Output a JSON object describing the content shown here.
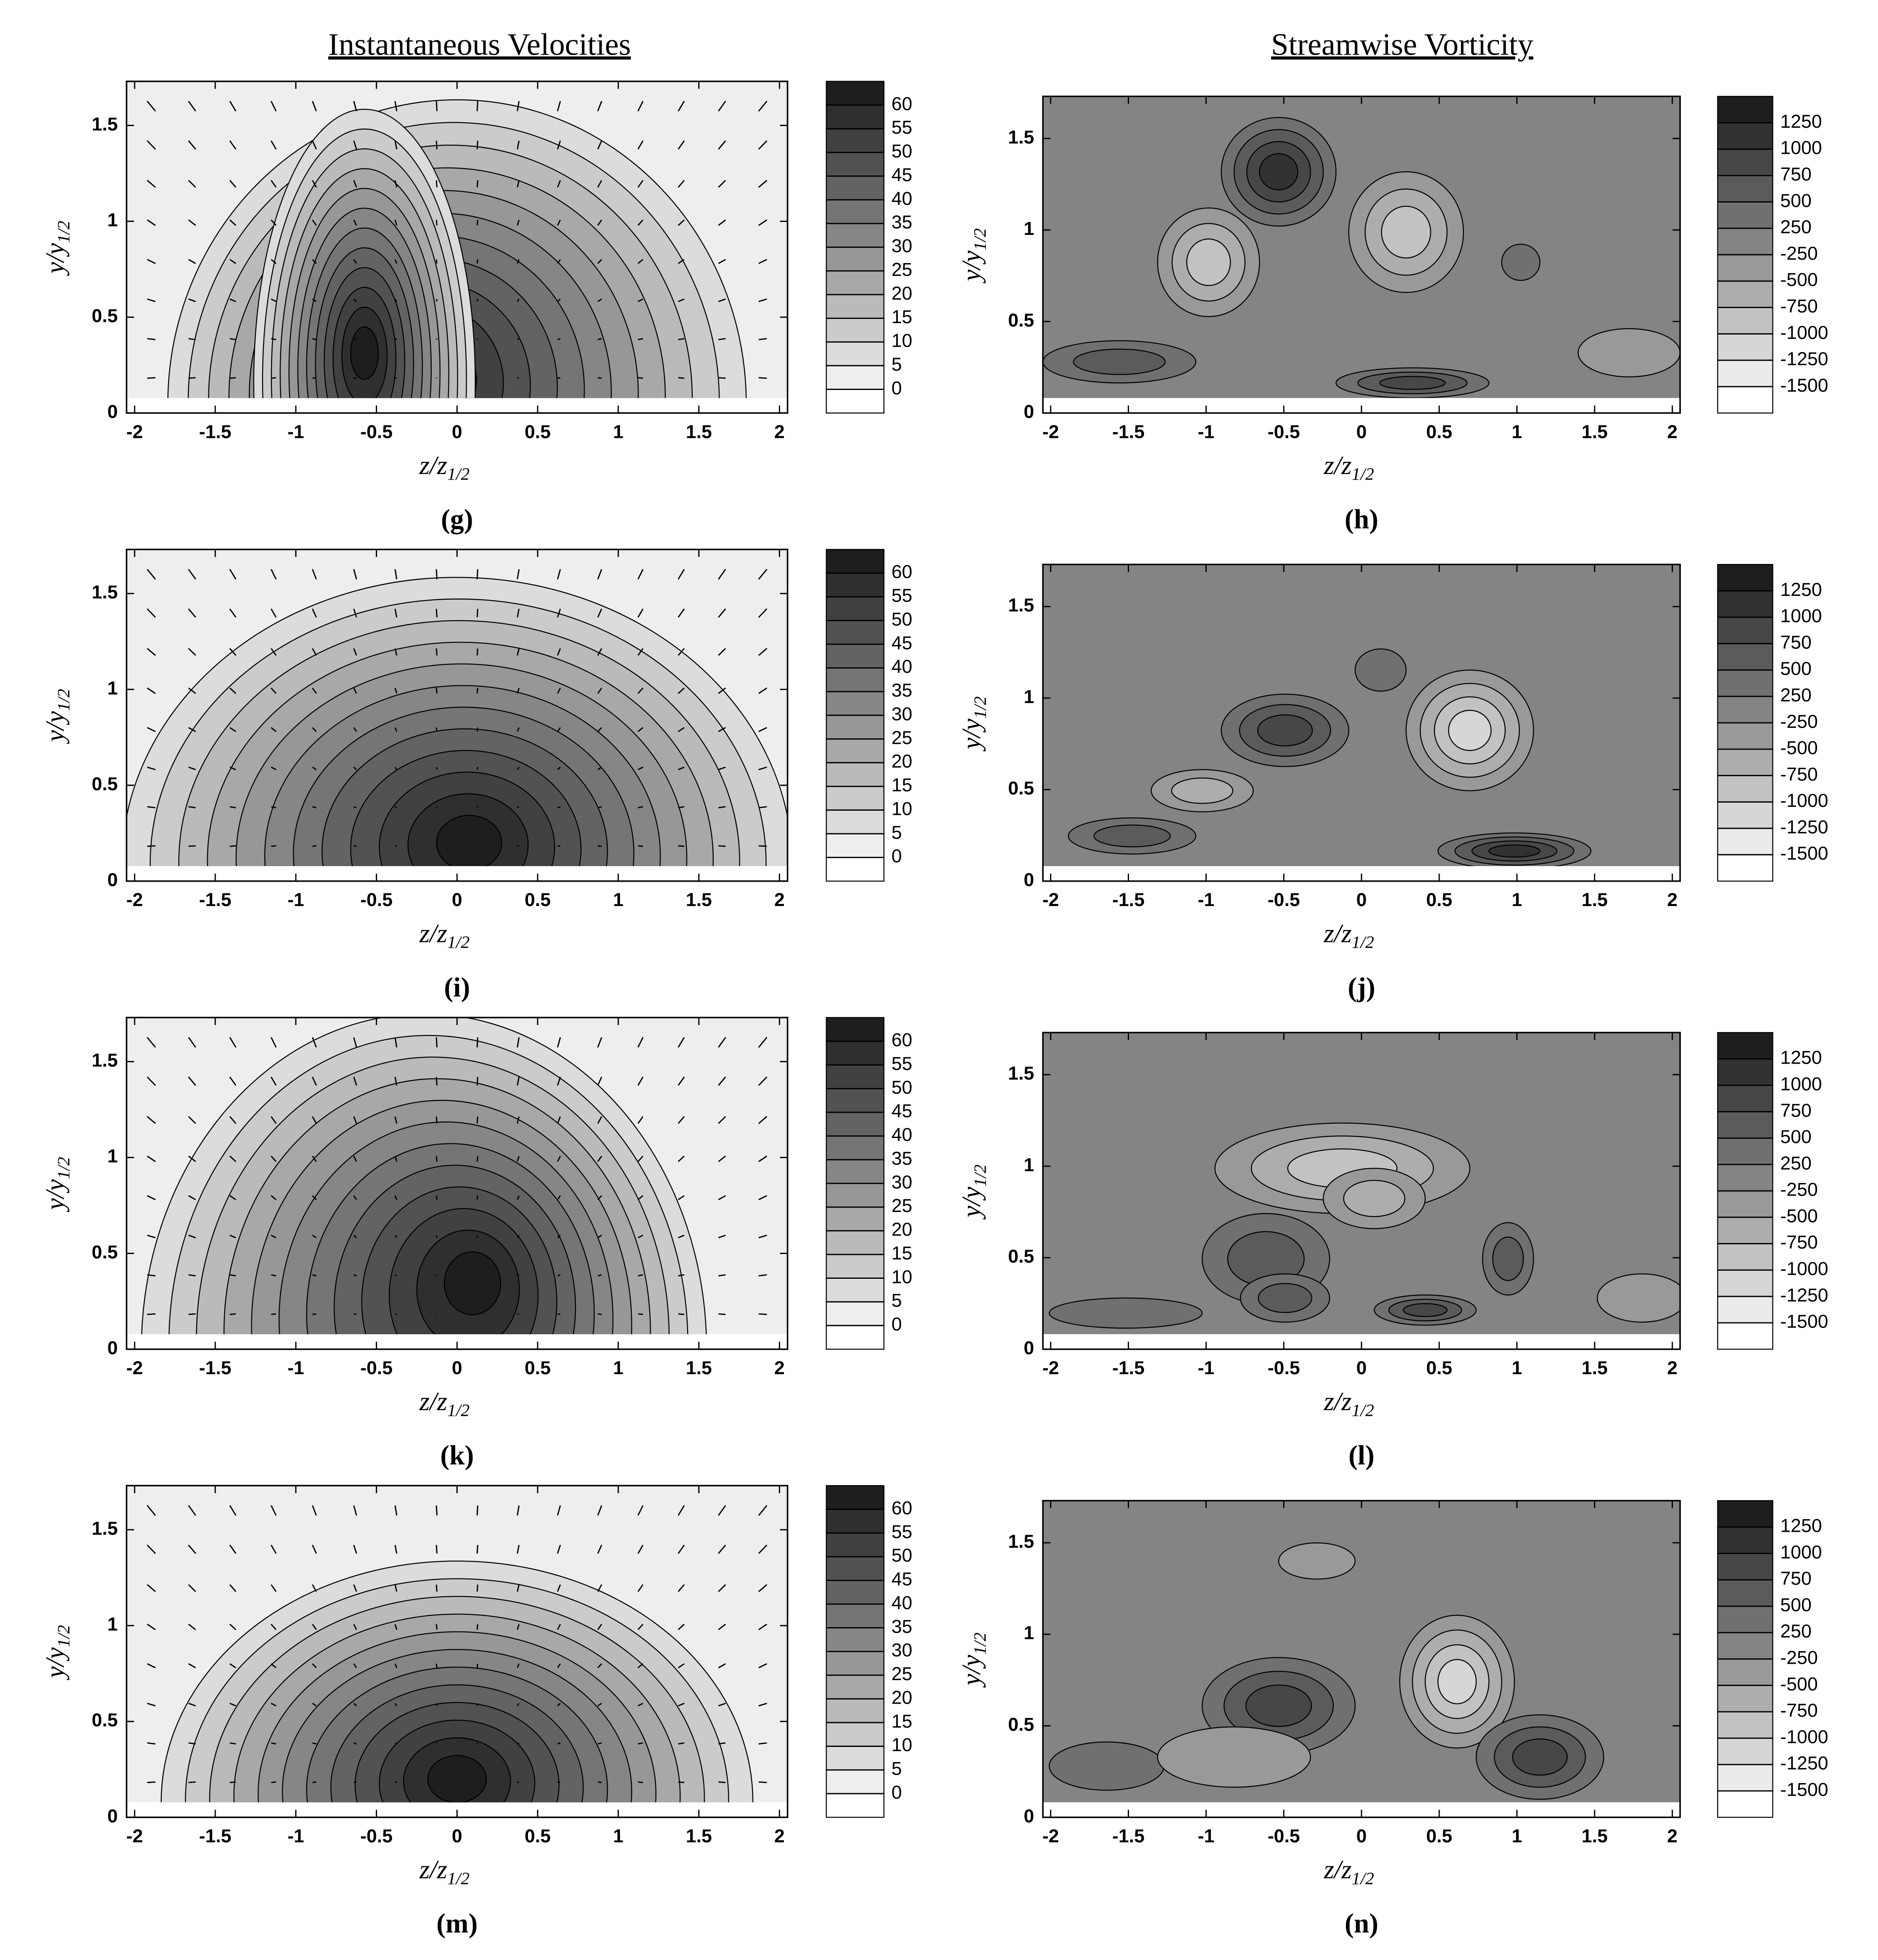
{
  "headers": [
    "Instantaneous Velocities",
    "Streamwise Vorticity"
  ],
  "chart_data": [
    {
      "type": "contour",
      "label": "(g)",
      "xlabel": "z/z",
      "xlabel_sub": "1/2",
      "ylabel": "y/y",
      "ylabel_sub": "1/2",
      "xlim": [
        -2.05,
        2.05
      ],
      "ylim": [
        0,
        1.73
      ],
      "xticks": [
        -2,
        -1.5,
        -1,
        -0.5,
        0,
        0.5,
        1,
        1.5,
        2
      ],
      "yticks": [
        0,
        0.5,
        1,
        1.5
      ],
      "colorbar_levels": [
        0,
        5,
        10,
        15,
        20,
        25,
        30,
        35,
        40,
        45,
        50,
        55,
        60
      ]
    },
    {
      "type": "contour",
      "label": "(h)",
      "xlabel": "z/z",
      "xlabel_sub": "1/2",
      "ylabel": "y/y",
      "ylabel_sub": "1/2",
      "xlim": [
        -2.05,
        2.05
      ],
      "ylim": [
        0,
        1.73
      ],
      "xticks": [
        -2,
        -1.5,
        -1,
        -0.5,
        0,
        0.5,
        1,
        1.5,
        2
      ],
      "yticks": [
        0,
        0.5,
        1,
        1.5
      ],
      "colorbar_levels": [
        -1500,
        -1250,
        -1000,
        -750,
        -500,
        -250,
        250,
        500,
        750,
        1000,
        1250
      ]
    },
    {
      "type": "contour",
      "label": "(i)",
      "xlabel": "z/z",
      "xlabel_sub": "1/2",
      "ylabel": "y/y",
      "ylabel_sub": "1/2",
      "xlim": [
        -2.05,
        2.05
      ],
      "ylim": [
        0,
        1.73
      ],
      "xticks": [
        -2,
        -1.5,
        -1,
        -0.5,
        0,
        0.5,
        1,
        1.5,
        2
      ],
      "yticks": [
        0,
        0.5,
        1,
        1.5
      ],
      "colorbar_levels": [
        0,
        5,
        10,
        15,
        20,
        25,
        30,
        35,
        40,
        45,
        50,
        55,
        60
      ]
    },
    {
      "type": "contour",
      "label": "(j)",
      "xlabel": "z/z",
      "xlabel_sub": "1/2",
      "ylabel": "y/y",
      "ylabel_sub": "1/2",
      "xlim": [
        -2.05,
        2.05
      ],
      "ylim": [
        0,
        1.73
      ],
      "xticks": [
        -2,
        -1.5,
        -1,
        -0.5,
        0,
        0.5,
        1,
        1.5,
        2
      ],
      "yticks": [
        0,
        0.5,
        1,
        1.5
      ],
      "colorbar_levels": [
        -1500,
        -1250,
        -1000,
        -750,
        -500,
        -250,
        250,
        500,
        750,
        1000,
        1250
      ]
    },
    {
      "type": "contour",
      "label": "(k)",
      "xlabel": "z/z",
      "xlabel_sub": "1/2",
      "ylabel": "y/y",
      "ylabel_sub": "1/2",
      "xlim": [
        -2.05,
        2.05
      ],
      "ylim": [
        0,
        1.73
      ],
      "xticks": [
        -2,
        -1.5,
        -1,
        -0.5,
        0,
        0.5,
        1,
        1.5,
        2
      ],
      "yticks": [
        0,
        0.5,
        1,
        1.5
      ],
      "colorbar_levels": [
        0,
        5,
        10,
        15,
        20,
        25,
        30,
        35,
        40,
        45,
        50,
        55,
        60
      ]
    },
    {
      "type": "contour",
      "label": "(l)",
      "xlabel": "z/z",
      "xlabel_sub": "1/2",
      "ylabel": "y/y",
      "ylabel_sub": "1/2",
      "xlim": [
        -2.05,
        2.05
      ],
      "ylim": [
        0,
        1.73
      ],
      "xticks": [
        -2,
        -1.5,
        -1,
        -0.5,
        0,
        0.5,
        1,
        1.5,
        2
      ],
      "yticks": [
        0,
        0.5,
        1,
        1.5
      ],
      "colorbar_levels": [
        -1500,
        -1250,
        -1000,
        -750,
        -500,
        -250,
        250,
        500,
        750,
        1000,
        1250
      ]
    },
    {
      "type": "contour",
      "label": "(m)",
      "xlabel": "z/z",
      "xlabel_sub": "1/2",
      "ylabel": "y/y",
      "ylabel_sub": "1/2",
      "xlim": [
        -2.05,
        2.05
      ],
      "ylim": [
        0,
        1.73
      ],
      "xticks": [
        -2,
        -1.5,
        -1,
        -0.5,
        0,
        0.5,
        1,
        1.5,
        2
      ],
      "yticks": [
        0,
        0.5,
        1,
        1.5
      ],
      "colorbar_levels": [
        0,
        5,
        10,
        15,
        20,
        25,
        30,
        35,
        40,
        45,
        50,
        55,
        60
      ]
    },
    {
      "type": "contour",
      "label": "(n)",
      "xlabel": "z/z",
      "xlabel_sub": "1/2",
      "ylabel": "y/y",
      "ylabel_sub": "1/2",
      "xlim": [
        -2.05,
        2.05
      ],
      "ylim": [
        0,
        1.73
      ],
      "xticks": [
        -2,
        -1.5,
        -1,
        -0.5,
        0,
        0.5,
        1,
        1.5,
        2
      ],
      "yticks": [
        0,
        0.5,
        1,
        1.5
      ],
      "colorbar_levels": [
        -1500,
        -1250,
        -1000,
        -750,
        -500,
        -250,
        250,
        500,
        750,
        1000,
        1250
      ]
    }
  ]
}
